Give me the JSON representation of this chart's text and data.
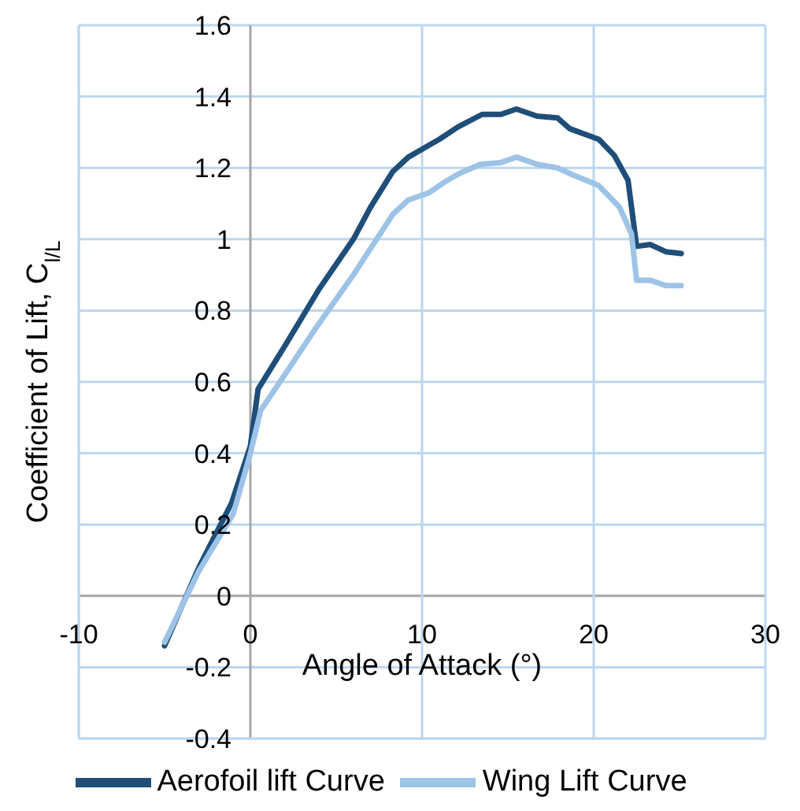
{
  "chart_data": {
    "type": "line",
    "xlabel": "Angle of Attack (°)",
    "ylabel": "Coefficient of Lift, C$_{l/L}$",
    "xlim": [
      -10,
      30
    ],
    "xticks": [
      -10,
      0,
      10,
      20,
      30
    ],
    "ylim": [
      -0.4,
      1.6
    ],
    "yticks": [
      -0.4,
      -0.2,
      0,
      0.2,
      0.4,
      0.6,
      0.8,
      1,
      1.2,
      1.4,
      1.6
    ],
    "grid": true,
    "legend": "bottom",
    "marker": "none",
    "line_style": "solid",
    "series": [
      {
        "name": "Aerofoil lift Curve",
        "color": "#1f4e79",
        "x": [
          -5,
          -3,
          -1.1,
          0,
          0.45,
          2,
          4,
          6,
          7,
          8.3,
          9.2,
          10.1,
          11,
          12.1,
          13.5,
          14.6,
          15.5,
          16.7,
          17.9,
          18.6,
          20.3,
          21.2,
          22,
          22.5,
          23.3,
          24.2,
          25.1
        ],
        "values": [
          -0.14,
          0.08,
          0.26,
          0.42,
          0.58,
          0.7,
          0.86,
          1.0,
          1.09,
          1.19,
          1.23,
          1.255,
          1.28,
          1.315,
          1.35,
          1.35,
          1.365,
          1.345,
          1.34,
          1.31,
          1.28,
          1.235,
          1.165,
          0.98,
          0.985,
          0.965,
          0.96
        ]
      },
      {
        "name": "Wing Lift Curve",
        "color": "#9dc3e6",
        "x": [
          -5,
          -3,
          -1,
          0,
          0.6,
          2,
          3.8,
          6,
          8.3,
          9.2,
          10.4,
          11.3,
          12.2,
          13.4,
          14.6,
          15.5,
          16.7,
          17.9,
          18.8,
          20.3,
          21.5,
          22.2,
          22.5,
          23.3,
          24.2,
          25.1
        ],
        "values": [
          -0.13,
          0.07,
          0.23,
          0.4,
          0.52,
          0.62,
          0.75,
          0.9,
          1.07,
          1.11,
          1.13,
          1.16,
          1.185,
          1.21,
          1.215,
          1.23,
          1.21,
          1.2,
          1.18,
          1.15,
          1.09,
          1.015,
          0.885,
          0.885,
          0.87,
          0.87
        ]
      }
    ]
  }
}
